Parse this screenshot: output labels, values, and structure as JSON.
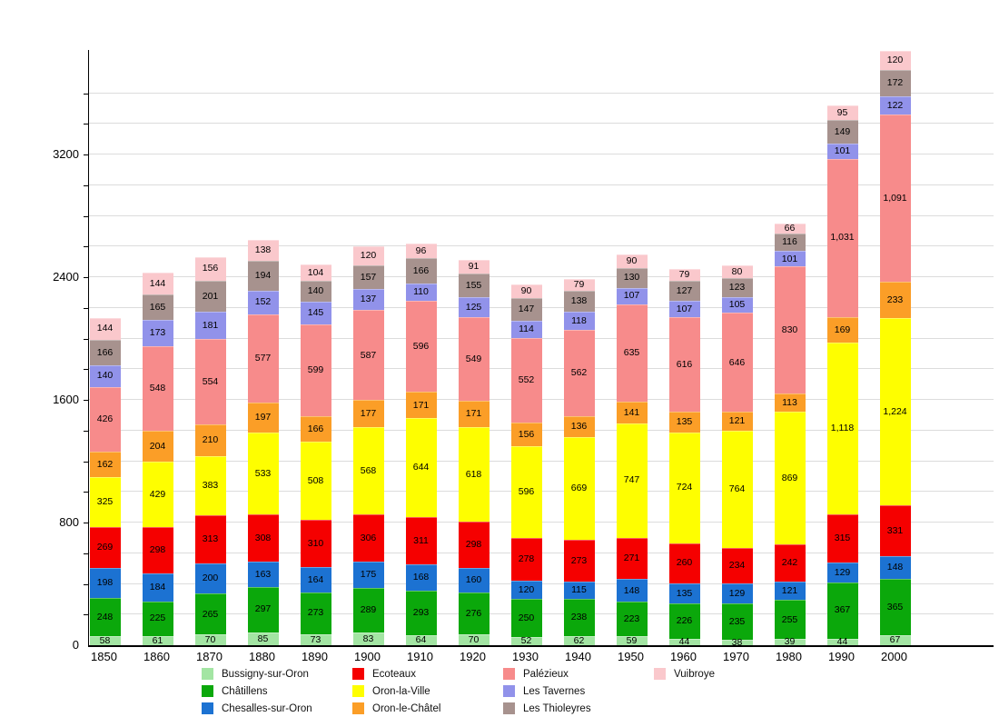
{
  "chart_data": {
    "type": "bar",
    "stacked": true,
    "title": "",
    "xlabel": "",
    "ylabel": "",
    "categories": [
      "1850",
      "1860",
      "1870",
      "1880",
      "1890",
      "1900",
      "1910",
      "1920",
      "1930",
      "1940",
      "1950",
      "1960",
      "1970",
      "1980",
      "1990",
      "2000"
    ],
    "series": [
      {
        "name": "Bussigny-sur-Oron",
        "color": "#A3E5A3",
        "values": [
          58,
          61,
          70,
          85,
          73,
          83,
          64,
          70,
          52,
          62,
          59,
          44,
          38,
          39,
          44,
          67
        ]
      },
      {
        "name": "Châtillens",
        "color": "#0BA80B",
        "values": [
          248,
          225,
          265,
          297,
          273,
          289,
          293,
          276,
          250,
          238,
          223,
          226,
          235,
          255,
          367,
          365
        ]
      },
      {
        "name": "Chesalles-sur-Oron",
        "color": "#1C72D2",
        "values": [
          198,
          184,
          200,
          163,
          164,
          175,
          168,
          160,
          120,
          115,
          148,
          135,
          129,
          121,
          129,
          148
        ]
      },
      {
        "name": "Ecoteaux",
        "color": "#F50000",
        "values": [
          269,
          298,
          313,
          308,
          310,
          306,
          311,
          298,
          278,
          273,
          271,
          260,
          234,
          242,
          315,
          331
        ]
      },
      {
        "name": "Oron-la-Ville",
        "color": "#FEFE00",
        "values": [
          325,
          429,
          383,
          533,
          508,
          568,
          644,
          618,
          596,
          669,
          747,
          724,
          764,
          869,
          1118,
          1224
        ]
      },
      {
        "name": "Oron-le-Châtel",
        "color": "#FB9E27",
        "values": [
          162,
          204,
          210,
          197,
          166,
          177,
          171,
          171,
          156,
          136,
          141,
          135,
          121,
          113,
          169,
          233
        ]
      },
      {
        "name": "Palézieux",
        "color": "#F78B8B",
        "values": [
          426,
          548,
          554,
          577,
          599,
          587,
          596,
          549,
          552,
          562,
          635,
          616,
          646,
          830,
          1031,
          1091
        ]
      },
      {
        "name": "Les Tavernes",
        "color": "#9192EA",
        "values": [
          140,
          173,
          181,
          152,
          145,
          137,
          110,
          125,
          114,
          118,
          107,
          107,
          105,
          101,
          101,
          122
        ]
      },
      {
        "name": "Les Thioleyres",
        "color": "#A7928E",
        "values": [
          166,
          165,
          201,
          194,
          140,
          157,
          166,
          155,
          147,
          138,
          130,
          127,
          123,
          116,
          149,
          172
        ]
      },
      {
        "name": "Vuibroye",
        "color": "#FAC8CC",
        "values": [
          144,
          144,
          156,
          138,
          104,
          120,
          96,
          91,
          90,
          79,
          90,
          79,
          80,
          66,
          95,
          120
        ]
      }
    ],
    "y_axis": {
      "min": 0,
      "max": 3880,
      "major_ticks": [
        0,
        800,
        1600,
        2400,
        3200
      ],
      "minor_step": 200,
      "grid": true
    },
    "legend": {
      "position": "bottom",
      "items_per_column": 3
    },
    "value_labels": "inside-segments",
    "thousands_format": "comma"
  }
}
